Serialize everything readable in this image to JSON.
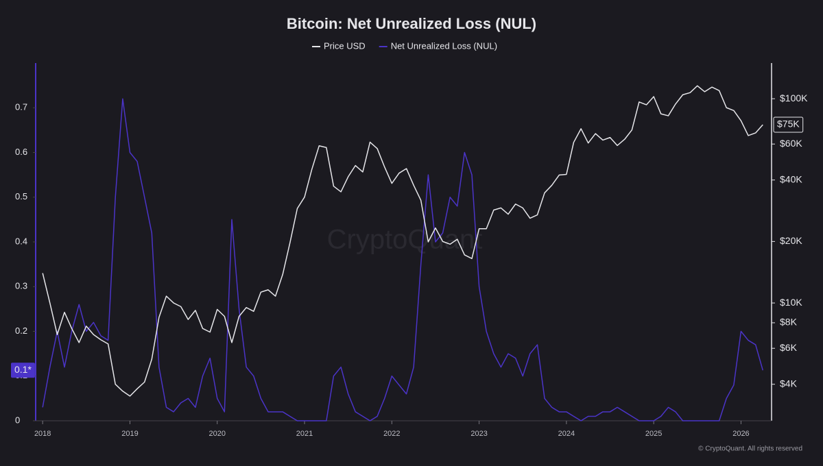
{
  "chart_data": {
    "type": "line",
    "title": "Bitcoin: Net Unrealized Loss (NUL)",
    "watermark": "CryptoQuant",
    "footer": "© CryptoQuant. All rights reserved",
    "x": [
      2018,
      2018.083,
      2018.167,
      2018.25,
      2018.333,
      2018.417,
      2018.5,
      2018.583,
      2018.667,
      2018.75,
      2018.833,
      2018.917,
      2019,
      2019.083,
      2019.167,
      2019.25,
      2019.333,
      2019.417,
      2019.5,
      2019.583,
      2019.667,
      2019.75,
      2019.833,
      2019.917,
      2020,
      2020.083,
      2020.167,
      2020.25,
      2020.333,
      2020.417,
      2020.5,
      2020.583,
      2020.667,
      2020.75,
      2020.833,
      2020.917,
      2021,
      2021.083,
      2021.167,
      2021.25,
      2021.333,
      2021.417,
      2021.5,
      2021.583,
      2021.667,
      2021.75,
      2021.833,
      2021.917,
      2022,
      2022.083,
      2022.167,
      2022.25,
      2022.333,
      2022.417,
      2022.5,
      2022.583,
      2022.667,
      2022.75,
      2022.833,
      2022.917,
      2023,
      2023.083,
      2023.167,
      2023.25,
      2023.333,
      2023.417,
      2023.5,
      2023.583,
      2023.667,
      2023.75,
      2023.833,
      2023.917,
      2024,
      2024.083,
      2024.167,
      2024.25,
      2024.333,
      2024.417,
      2024.5,
      2024.583,
      2024.667,
      2024.75,
      2024.833,
      2024.917,
      2025,
      2025.083,
      2025.167,
      2025.25,
      2025.333,
      2025.417,
      2025.5,
      2025.583,
      2025.667,
      2025.75,
      2025.833,
      2025.917,
      2026,
      2026.083,
      2026.167,
      2026.25
    ],
    "series": [
      {
        "name": "Price USD",
        "color": "#e6e6ea",
        "axis": "y2",
        "values": [
          14000,
          10000,
          7000,
          9000,
          7500,
          6400,
          7700,
          7000,
          6600,
          6300,
          4000,
          3700,
          3500,
          3800,
          4100,
          5300,
          8500,
          10800,
          10000,
          9600,
          8300,
          9200,
          7500,
          7200,
          9300,
          8600,
          6400,
          8600,
          9500,
          9100,
          11300,
          11600,
          10800,
          13800,
          19700,
          29000,
          33000,
          45000,
          58800,
          57700,
          37300,
          35000,
          41500,
          47100,
          43800,
          61300,
          57000,
          46300,
          38500,
          43200,
          45500,
          37700,
          31800,
          19900,
          23300,
          20000,
          19400,
          20500,
          17200,
          16500,
          23100,
          23100,
          28500,
          29200,
          27200,
          30500,
          29200,
          26000,
          27000,
          34600,
          37700,
          42300,
          42600,
          61100,
          71300,
          60700,
          67500,
          62700,
          64600,
          59000,
          63300,
          70300,
          96400,
          93400,
          102400,
          84300,
          82500,
          94200,
          104600,
          107100,
          115700,
          108200,
          114000,
          109600,
          90400,
          87500,
          78000,
          66000,
          68000,
          74600
        ]
      },
      {
        "name": "Net Unrealized Loss (NUL)",
        "color": "#4b34c8",
        "axis": "y",
        "values": [
          0.03,
          0.12,
          0.2,
          0.12,
          0.2,
          0.26,
          0.2,
          0.22,
          0.19,
          0.18,
          0.5,
          0.72,
          0.6,
          0.58,
          0.5,
          0.42,
          0.12,
          0.03,
          0.02,
          0.04,
          0.05,
          0.03,
          0.1,
          0.14,
          0.05,
          0.02,
          0.45,
          0.25,
          0.12,
          0.1,
          0.05,
          0.02,
          0.02,
          0.02,
          0.01,
          0,
          0,
          0,
          0,
          0,
          0.1,
          0.12,
          0.06,
          0.02,
          0.01,
          0,
          0.01,
          0.05,
          0.1,
          0.08,
          0.06,
          0.12,
          0.35,
          0.55,
          0.4,
          0.42,
          0.5,
          0.48,
          0.6,
          0.55,
          0.3,
          0.2,
          0.15,
          0.12,
          0.15,
          0.14,
          0.1,
          0.15,
          0.17,
          0.05,
          0.03,
          0.02,
          0.02,
          0.01,
          0,
          0.01,
          0.01,
          0.02,
          0.02,
          0.03,
          0.02,
          0.01,
          0,
          0,
          0,
          0.01,
          0.03,
          0.02,
          0,
          0,
          0,
          0,
          0,
          0,
          0.05,
          0.08,
          0.2,
          0.18,
          0.17,
          0.113
        ]
      }
    ],
    "annotations": [
      {
        "text": "$75K",
        "value": 74600,
        "axis": "y2"
      },
      {
        "text": "0.1*",
        "value": 0.113,
        "axis": "y"
      }
    ],
    "xlim": [
      2017.92,
      2026.35
    ],
    "xticks": [
      2018,
      2019,
      2020,
      2021,
      2022,
      2023,
      2024,
      2025,
      2026
    ],
    "ylim": [
      0,
      0.8
    ],
    "yticks": [
      0,
      0.1,
      0.2,
      0.3,
      0.4,
      0.5,
      0.6,
      0.7
    ],
    "y2lim": [
      2650,
      149500
    ],
    "y2log": true,
    "y2ticks": [
      {
        "value": 4000,
        "label": "$4K"
      },
      {
        "value": 6000,
        "label": "$6K"
      },
      {
        "value": 8000,
        "label": "$8K"
      },
      {
        "value": 10000,
        "label": "$10K"
      },
      {
        "value": 20000,
        "label": "$20K"
      },
      {
        "value": 40000,
        "label": "$40K"
      },
      {
        "value": 60000,
        "label": "$60K"
      },
      {
        "value": 100000,
        "label": "$100K"
      }
    ],
    "legend": "top",
    "grid": false
  }
}
